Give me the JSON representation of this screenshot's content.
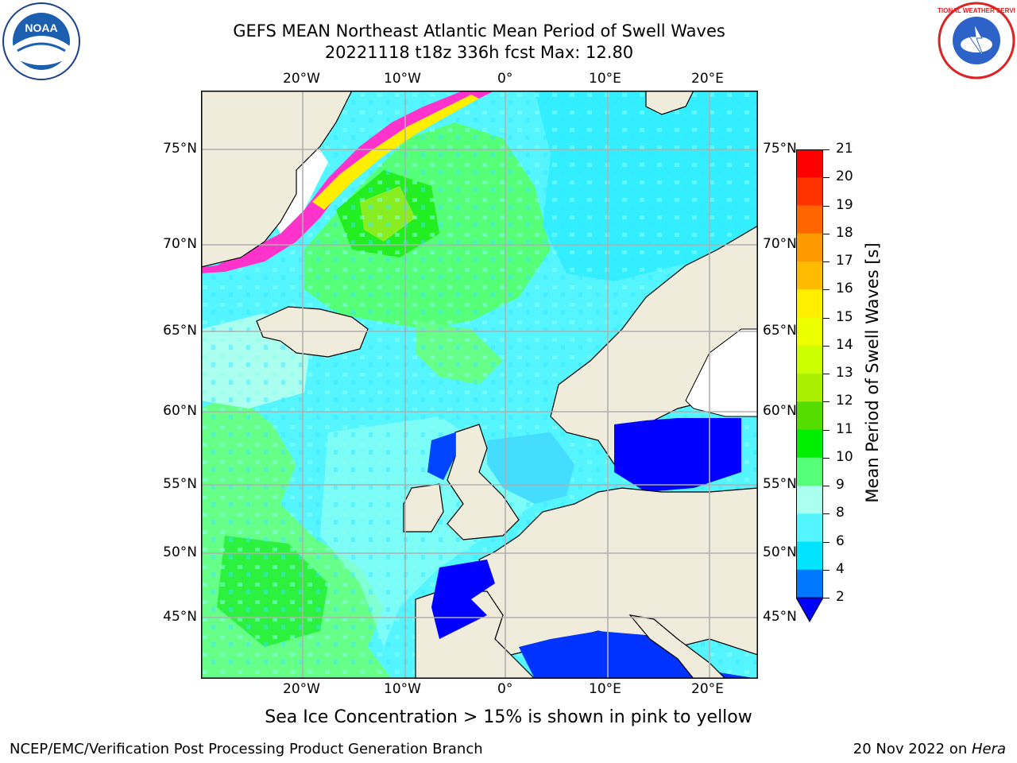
{
  "title": {
    "line1": "GEFS MEAN Northeast Atlantic Mean Period of Swell Waves",
    "line2": "20221118 t18z 336h fcst   Max: 12.80"
  },
  "map": {
    "lon_labels": [
      "20°W",
      "10°W",
      "0°",
      "10°E",
      "20°E"
    ],
    "lat_labels": [
      "75°N",
      "70°N",
      "65°N",
      "60°N",
      "55°N",
      "50°N",
      "45°N"
    ],
    "colors": {
      "land": "#efecdc",
      "ice_edge_pink": "#ff33cc",
      "ice_edge_yellow": "#ffee00",
      "grid": "#b0b0b0"
    }
  },
  "colorbar": {
    "label": "Mean Period of Swell Waves [s]",
    "ticks": [
      "2",
      "4",
      "6",
      "8",
      "9",
      "10",
      "11",
      "12",
      "13",
      "14",
      "15",
      "16",
      "17",
      "18",
      "19",
      "20",
      "21"
    ],
    "colors": [
      "#0000ff",
      "#0077ff",
      "#00e4ff",
      "#55f5ff",
      "#aaffee",
      "#55ff77",
      "#00ee00",
      "#55dd00",
      "#aaee00",
      "#ccff00",
      "#eeff00",
      "#ffee00",
      "#ffbb00",
      "#ff9900",
      "#ff6600",
      "#ff3300",
      "#ff0000"
    ]
  },
  "note": "Sea Ice Concentration > 15% is shown in pink to yellow",
  "footer": {
    "left": "NCEP/EMC/Verification Post Processing Product Generation Branch",
    "right_date": "20 Nov 2022 on ",
    "right_host": "Hera"
  },
  "logos": {
    "left_text": "NOAA",
    "right_text": "NATIONAL WEATHER SERVICE"
  }
}
